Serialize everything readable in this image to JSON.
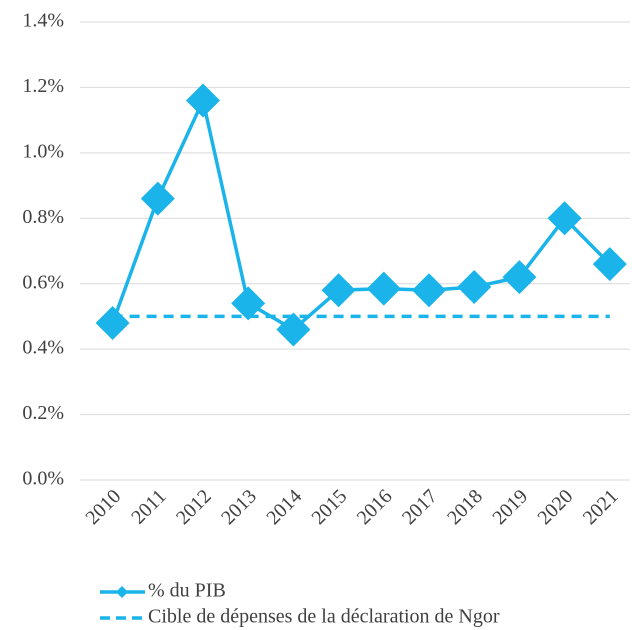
{
  "chart_data": {
    "type": "line",
    "categories": [
      "2010",
      "2011",
      "2012",
      "2013",
      "2014",
      "2015",
      "2016",
      "2017",
      "2018",
      "2019",
      "2020",
      "2021"
    ],
    "series": [
      {
        "name": "% du PIB",
        "color": "#1ab4ea",
        "dashed": false,
        "markers": true,
        "values": [
          0.48,
          0.86,
          1.16,
          0.54,
          0.46,
          0.58,
          0.585,
          0.58,
          0.59,
          0.62,
          0.8,
          0.66
        ]
      },
      {
        "name": "Cible de dépenses de la déclaration de Ngor",
        "color": "#1ab4ea",
        "dashed": true,
        "markers": false,
        "values": [
          0.5,
          0.5,
          0.5,
          0.5,
          0.5,
          0.5,
          0.5,
          0.5,
          0.5,
          0.5,
          0.5,
          0.5
        ]
      }
    ],
    "ylim": [
      0,
      1.4
    ],
    "yticks": [
      {
        "value": 0,
        "label": "0.0%"
      },
      {
        "value": 0.2,
        "label": "0.2%"
      },
      {
        "value": 0.4,
        "label": "0.4%"
      },
      {
        "value": 0.6,
        "label": "0.6%"
      },
      {
        "value": 0.8,
        "label": "0.8%"
      },
      {
        "value": 1.0,
        "label": "1.0%"
      },
      {
        "value": 1.2,
        "label": "1.2%"
      },
      {
        "value": 1.4,
        "label": "1.4%"
      }
    ],
    "grid": true,
    "legend": "bottom"
  }
}
